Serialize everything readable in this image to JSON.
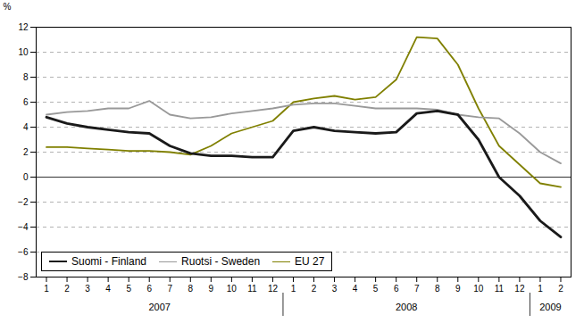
{
  "chart_data": {
    "type": "line",
    "ylabel": "%",
    "categories": [
      "1",
      "2",
      "3",
      "4",
      "5",
      "6",
      "7",
      "8",
      "9",
      "10",
      "11",
      "12",
      "1",
      "2",
      "3",
      "4",
      "5",
      "6",
      "7",
      "8",
      "9",
      "10",
      "11",
      "12",
      "1",
      "2"
    ],
    "annotations": [
      "2007",
      "2008",
      "2009"
    ],
    "series": [
      {
        "name": "Suomi - Finland",
        "color": "#1a1a1a",
        "values": [
          4.8,
          4.3,
          4.0,
          3.8,
          3.6,
          3.5,
          2.5,
          1.9,
          1.7,
          1.7,
          1.6,
          1.6,
          3.7,
          4.0,
          3.7,
          3.6,
          3.5,
          3.6,
          5.1,
          5.3,
          5.0,
          3.0,
          0.0,
          -1.5,
          -3.5,
          -4.8
        ]
      },
      {
        "name": "Ruotsi - Sweden",
        "color": "#999999",
        "values": [
          5.0,
          5.2,
          5.3,
          5.5,
          5.5,
          6.1,
          5.0,
          4.7,
          4.8,
          5.1,
          5.3,
          5.5,
          5.8,
          5.9,
          5.9,
          5.7,
          5.5,
          5.5,
          5.5,
          5.4,
          5.0,
          4.8,
          4.7,
          3.5,
          2.0,
          1.1
        ]
      },
      {
        "name": "EU 27",
        "color": "#808000",
        "values": [
          2.4,
          2.4,
          2.3,
          2.2,
          2.1,
          2.1,
          2.0,
          1.8,
          2.5,
          3.5,
          4.0,
          4.5,
          6.0,
          6.3,
          6.5,
          6.2,
          6.4,
          7.8,
          11.2,
          11.1,
          9.0,
          5.5,
          2.5,
          1.0,
          -0.5,
          -0.8
        ]
      }
    ],
    "ylim": [
      -8,
      12
    ],
    "yticks": [
      -8,
      -6,
      -4,
      -2,
      0,
      2,
      4,
      6,
      8,
      10,
      12
    ],
    "grid": true,
    "legend": "lower left"
  }
}
